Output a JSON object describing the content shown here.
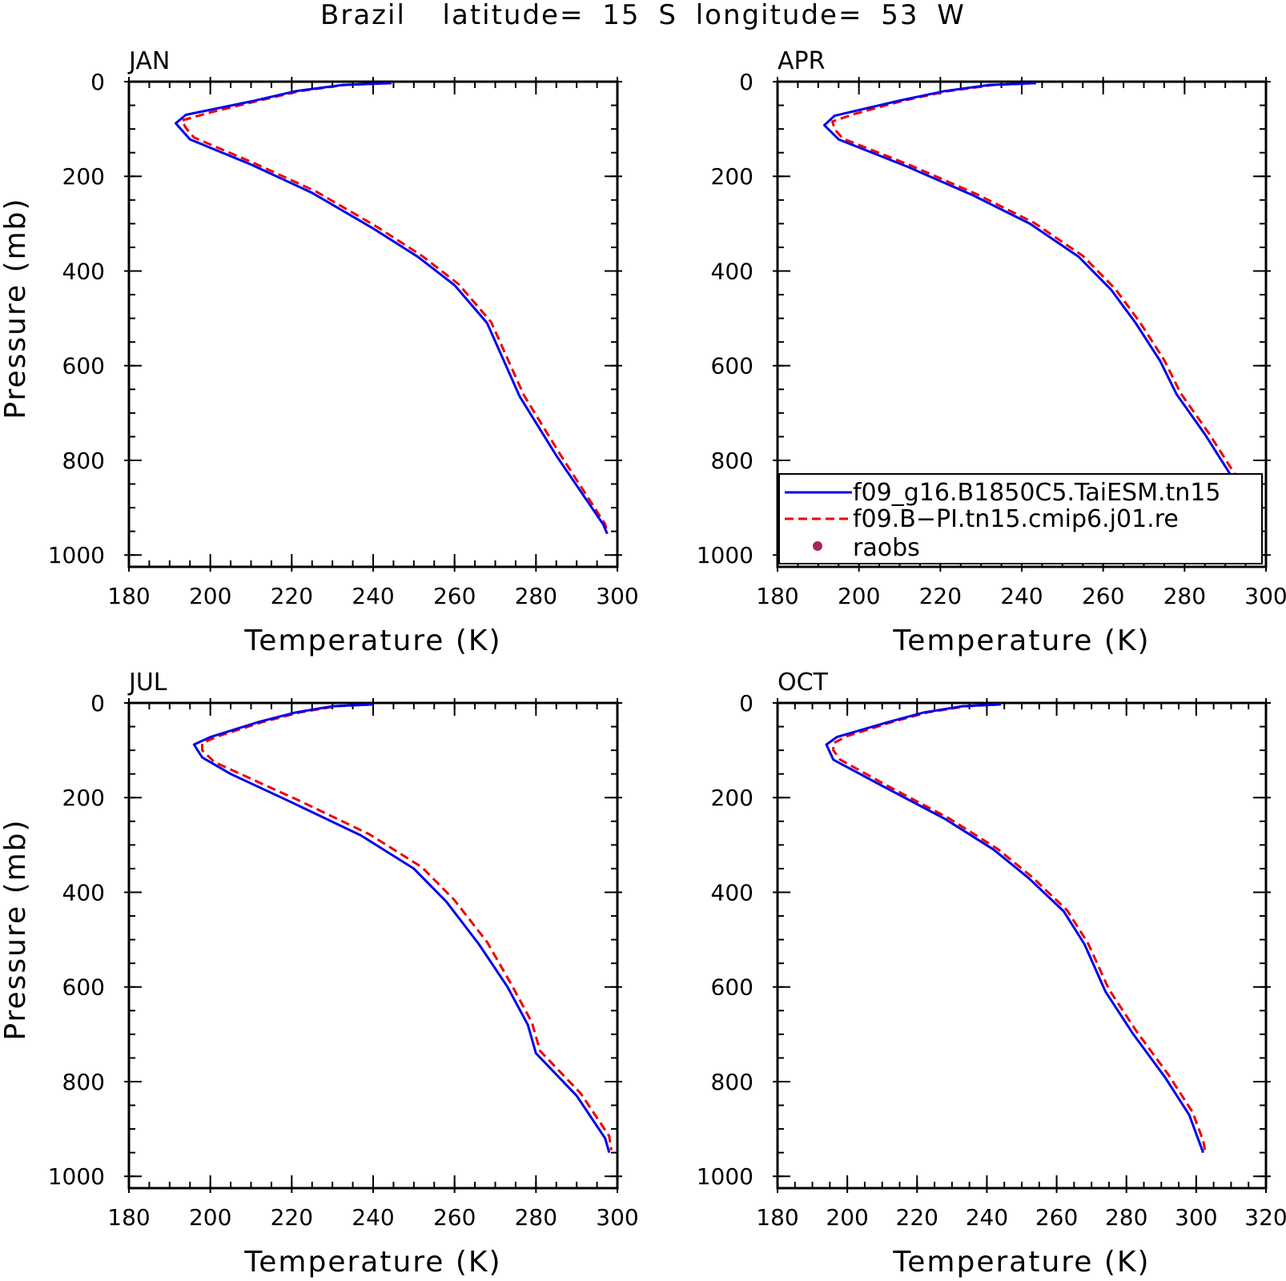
{
  "figure": {
    "title": "Brazil  latitude= 15 S longitude= 53 W"
  },
  "legend": {
    "entries": [
      {
        "label": "f09_g16.B1850C5.TaiESM.tn15",
        "color": "#0000ee",
        "style": "solid"
      },
      {
        "label": "f09.B−PI.tn15.cmip6.j01.re",
        "color": "#ee0000",
        "style": "dashed"
      },
      {
        "label": "raobs",
        "color": "#a8255e",
        "style": "dot"
      }
    ]
  },
  "chart_data": [
    {
      "type": "line",
      "panel_label": "JAN",
      "xlabel": "Temperature (K)",
      "ylabel": "Pressure (mb)",
      "xlim": [
        180,
        300
      ],
      "ylim": [
        1025,
        0
      ],
      "xticks": [
        180,
        200,
        220,
        240,
        260,
        280,
        300
      ],
      "yticks": [
        0,
        200,
        400,
        600,
        800,
        1000
      ],
      "series": [
        {
          "name": "f09_g16.B1850C5.TaiESM.tn15",
          "color": "#0000ee",
          "x": [
            244.5,
            232.5,
            221,
            211,
            194,
            191.5,
            195,
            210,
            225,
            240,
            251,
            260,
            268,
            276,
            285,
            296.5,
            297.5
          ],
          "y": [
            3,
            7,
            20,
            40,
            70,
            88,
            122,
            175,
            235,
            310,
            370,
            430,
            510,
            665,
            790,
            935,
            955
          ]
        },
        {
          "name": "f09.B−PI.tn15.cmip6.j01.re",
          "color": "#ee0000",
          "x": [
            244.5,
            233,
            222,
            212,
            200,
            193,
            194,
            196,
            211,
            226,
            241,
            252,
            261,
            269,
            277,
            286,
            297,
            297.5
          ],
          "y": [
            3,
            7,
            20,
            40,
            65,
            82,
            98,
            118,
            173,
            232,
            307,
            368,
            428,
            508,
            662,
            788,
            935,
            955
          ]
        },
        {
          "name": "raobs",
          "color": "#a8255e",
          "x": [],
          "y": []
        }
      ]
    },
    {
      "type": "line",
      "panel_label": "APR",
      "xlabel": "Temperature (K)",
      "ylabel": "",
      "xlim": [
        180,
        300
      ],
      "ylim": [
        1025,
        0
      ],
      "xticks": [
        180,
        200,
        220,
        240,
        260,
        280,
        300
      ],
      "yticks": [
        0,
        200,
        400,
        600,
        800,
        1000
      ],
      "series": [
        {
          "name": "f09_g16.B1850C5.TaiESM.tn15",
          "color": "#0000ee",
          "x": [
            243.5,
            232,
            221,
            210,
            194,
            191.5,
            195,
            212,
            228,
            242,
            254,
            262,
            268,
            274,
            278,
            285,
            292,
            298,
            299
          ],
          "y": [
            3,
            7,
            20,
            40,
            72,
            92,
            122,
            180,
            240,
            300,
            370,
            440,
            510,
            590,
            660,
            745,
            840,
            930,
            950
          ]
        },
        {
          "name": "f09.B−PI.tn15.cmip6.j01.re",
          "color": "#ee0000",
          "x": [
            243.5,
            233,
            222,
            211,
            199,
            193.5,
            194,
            196,
            213,
            229,
            243,
            255,
            263,
            269,
            275,
            279,
            286,
            293,
            298.5,
            299
          ],
          "y": [
            3,
            7,
            20,
            40,
            68,
            84,
            100,
            120,
            178,
            238,
            298,
            368,
            438,
            508,
            588,
            658,
            743,
            838,
            928,
            955
          ]
        },
        {
          "name": "raobs",
          "color": "#a8255e",
          "x": [],
          "y": []
        }
      ]
    },
    {
      "type": "line",
      "panel_label": "JUL",
      "xlabel": "Temperature (K)",
      "ylabel": "Pressure (mb)",
      "xlim": [
        180,
        300
      ],
      "ylim": [
        1025,
        0
      ],
      "xticks": [
        180,
        200,
        220,
        240,
        260,
        280,
        300
      ],
      "yticks": [
        0,
        200,
        400,
        600,
        800,
        1000
      ],
      "series": [
        {
          "name": "f09_g16.B1850C5.TaiESM.tn15",
          "color": "#0000ee",
          "x": [
            240,
            230,
            221,
            212,
            200,
            196,
            198,
            205,
            220,
            237,
            250,
            258,
            266,
            273,
            278,
            280,
            290,
            297,
            298
          ],
          "y": [
            3,
            7,
            20,
            40,
            72,
            88,
            115,
            150,
            210,
            280,
            350,
            420,
            510,
            600,
            680,
            740,
            830,
            920,
            950
          ]
        },
        {
          "name": "f09.B−PI.tn15.cmip6.j01.re",
          "color": "#ee0000",
          "x": [
            240,
            231,
            222,
            213,
            202,
            198,
            198,
            201,
            222,
            239,
            252,
            260,
            268,
            274,
            279,
            281,
            291,
            298,
            298.5
          ],
          "y": [
            3,
            7,
            20,
            40,
            70,
            85,
            100,
            125,
            207,
            277,
            347,
            417,
            505,
            595,
            675,
            735,
            825,
            915,
            945
          ]
        },
        {
          "name": "raobs",
          "color": "#a8255e",
          "x": [],
          "y": []
        }
      ]
    },
    {
      "type": "line",
      "panel_label": "OCT",
      "xlabel": "Temperature (K)",
      "ylabel": "",
      "xlim": [
        180,
        320
      ],
      "ylim": [
        1025,
        0
      ],
      "xticks": [
        180,
        200,
        220,
        240,
        260,
        280,
        300,
        320
      ],
      "yticks": [
        0,
        200,
        400,
        600,
        800,
        1000
      ],
      "series": [
        {
          "name": "f09_g16.B1850C5.TaiESM.tn15",
          "color": "#0000ee",
          "x": [
            244,
            233,
            222,
            212,
            197,
            194,
            196,
            210,
            228,
            242,
            252,
            262,
            268,
            274,
            282,
            291,
            298,
            301,
            302
          ],
          "y": [
            3,
            7,
            20,
            40,
            72,
            88,
            120,
            175,
            245,
            310,
            370,
            440,
            510,
            610,
            700,
            790,
            870,
            930,
            950
          ]
        },
        {
          "name": "f09.B−PI.tn15.cmip6.j01.re",
          "color": "#ee0000",
          "x": [
            244,
            234,
            223,
            213,
            200,
            196,
            196,
            198,
            211,
            229,
            243,
            253,
            263,
            269,
            275,
            283,
            292,
            299,
            302,
            302.5
          ],
          "y": [
            3,
            7,
            20,
            40,
            70,
            85,
            100,
            120,
            173,
            243,
            308,
            368,
            438,
            508,
            605,
            695,
            785,
            865,
            925,
            945
          ]
        },
        {
          "name": "raobs",
          "color": "#a8255e",
          "x": [],
          "y": []
        }
      ]
    }
  ]
}
